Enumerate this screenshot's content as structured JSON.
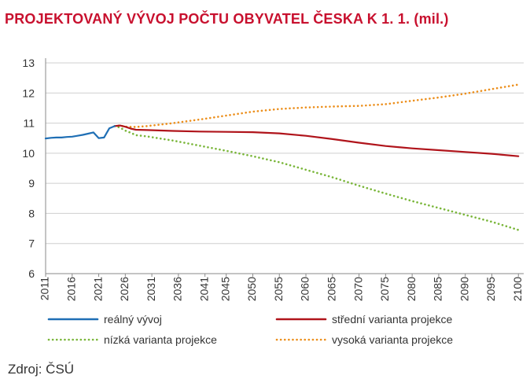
{
  "title": "PROJEKTOVANÝ VÝVOJ POČTU OBYVATEL ČESKA K 1. 1. (mil.)",
  "source": "Zdroj: ČSÚ",
  "colors": {
    "title": "#c8102e",
    "real": "#1f6fb5",
    "middle": "#b0141b",
    "low": "#7ab63a",
    "high": "#ec8f1c",
    "grid": "#cfcfcf",
    "axis": "#8a8a8a"
  },
  "chart_data": {
    "type": "line",
    "title": "PROJEKTOVANÝ VÝVOJ POČTU OBYVATEL ČESKA K 1. 1. (mil.)",
    "xlabel": "",
    "ylabel": "",
    "xlim": [
      2011,
      2101
    ],
    "ylim": [
      6,
      13
    ],
    "yticks": [
      "6",
      "7",
      "8",
      "9",
      "10",
      "11",
      "12",
      "13"
    ],
    "xticks": [
      "2011",
      "2016",
      "2021",
      "2026",
      "2031",
      "2036",
      "2041",
      "2045",
      "2050",
      "2055",
      "2060",
      "2065",
      "2070",
      "2075",
      "2080",
      "2085",
      "2090",
      "2095",
      "2100"
    ],
    "grid": "horizontal",
    "legend_position": "bottom",
    "series": [
      {
        "name": "reálný vývoj",
        "style": "solid",
        "color": "#1f6fb5",
        "x": [
          2011,
          2012,
          2013,
          2014,
          2015,
          2016,
          2017,
          2018,
          2019,
          2020,
          2021,
          2022,
          2023,
          2024
        ],
        "y": [
          10.49,
          10.51,
          10.52,
          10.52,
          10.54,
          10.55,
          10.58,
          10.61,
          10.65,
          10.69,
          10.5,
          10.52,
          10.83,
          10.9
        ]
      },
      {
        "name": "střední varianta projekce",
        "style": "solid",
        "color": "#b0141b",
        "x": [
          2024,
          2025,
          2026,
          2027,
          2028,
          2030,
          2035,
          2040,
          2045,
          2050,
          2055,
          2060,
          2065,
          2070,
          2075,
          2080,
          2085,
          2090,
          2095,
          2100
        ],
        "y": [
          10.9,
          10.92,
          10.88,
          10.82,
          10.78,
          10.77,
          10.74,
          10.72,
          10.71,
          10.7,
          10.66,
          10.58,
          10.47,
          10.35,
          10.24,
          10.16,
          10.1,
          10.04,
          9.98,
          9.9
        ]
      },
      {
        "name": "nízká varianta projekce",
        "style": "dotted",
        "color": "#7ab63a",
        "x": [
          2024,
          2025,
          2026,
          2027,
          2028,
          2030,
          2035,
          2040,
          2045,
          2050,
          2055,
          2060,
          2065,
          2070,
          2075,
          2080,
          2085,
          2090,
          2095,
          2100
        ],
        "y": [
          10.9,
          10.85,
          10.75,
          10.68,
          10.6,
          10.56,
          10.42,
          10.25,
          10.08,
          9.9,
          9.7,
          9.45,
          9.2,
          8.92,
          8.66,
          8.41,
          8.18,
          7.95,
          7.72,
          7.45
        ]
      },
      {
        "name": "vysoká varianta projekce",
        "style": "dotted",
        "color": "#ec8f1c",
        "x": [
          2024,
          2025,
          2026,
          2028,
          2030,
          2035,
          2040,
          2045,
          2050,
          2055,
          2060,
          2065,
          2070,
          2075,
          2080,
          2085,
          2090,
          2095,
          2100
        ],
        "y": [
          10.9,
          10.92,
          10.88,
          10.87,
          10.9,
          11.0,
          11.12,
          11.25,
          11.38,
          11.47,
          11.52,
          11.55,
          11.57,
          11.63,
          11.74,
          11.85,
          11.98,
          12.13,
          12.28
        ]
      }
    ]
  }
}
